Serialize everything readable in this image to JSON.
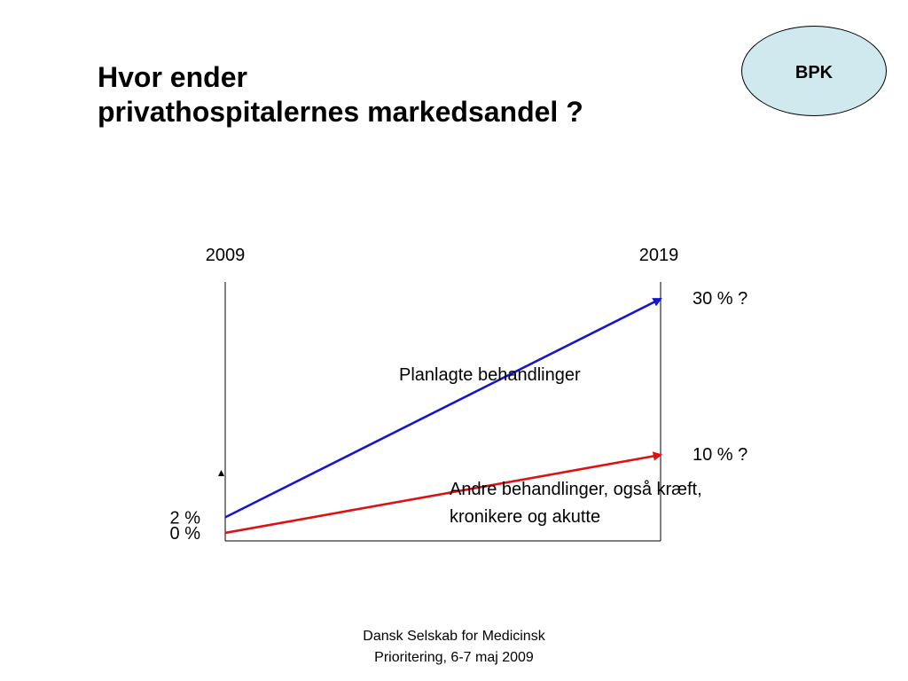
{
  "slide": {
    "title_lines": [
      "Hvor ender",
      "privathospitalernes markedsandel ?"
    ],
    "badge": {
      "label": "BPK",
      "fill": "#cfe9ef"
    },
    "footer_lines": [
      "Dansk Selskab for Medicinsk",
      "Prioritering, 6-7 maj 2009"
    ]
  },
  "chart_data": {
    "type": "line",
    "title": "",
    "xlabel": "",
    "ylabel": "",
    "x": [
      "2009",
      "2019"
    ],
    "ylim": [
      0,
      30
    ],
    "grid": false,
    "series": [
      {
        "name": "Planlagte behandlinger",
        "color": "#1414d2",
        "values": [
          2,
          30
        ],
        "start_label": "2 %",
        "end_label": "30 % ?"
      },
      {
        "name": "Andre behandlinger, også kræft, kronikere og akutte",
        "name_lines": [
          "Andre behandlinger, også kræft,",
          "kronikere og akutte"
        ],
        "color": "#e01010",
        "values": [
          0,
          10
        ],
        "start_label": "0 %",
        "end_label": "10 % ?"
      }
    ]
  }
}
